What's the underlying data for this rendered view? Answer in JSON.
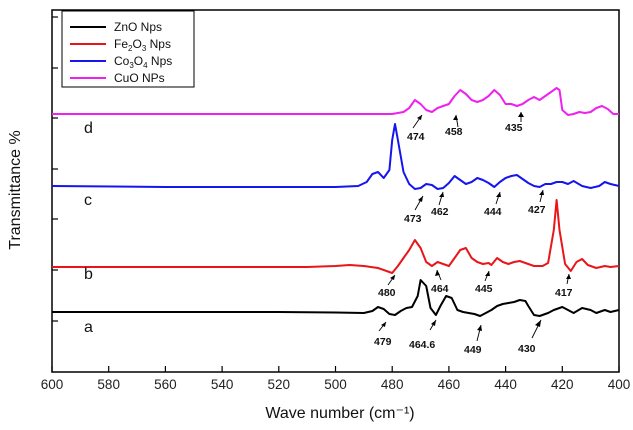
{
  "chart_data": {
    "type": "line",
    "title": "",
    "xlabel": "Wave number  (cm⁻¹)",
    "ylabel": "Transmittance %",
    "xlim": [
      600,
      400
    ],
    "x_reversed": true,
    "x_ticks": [
      600,
      580,
      560,
      540,
      520,
      500,
      480,
      460,
      440,
      420,
      400
    ],
    "y_ticks_labeled": false,
    "grid": false,
    "legend_position": "top-left",
    "y_units": "arbitrary (stacked offsets)",
    "series": [
      {
        "name": "ZnO   Nps",
        "legend_name": "ZnO   Nps",
        "curve_label": "a",
        "color": "#000000",
        "points": [
          [
            600,
            312
          ],
          [
            580,
            312
          ],
          [
            560,
            312
          ],
          [
            540,
            312
          ],
          [
            520,
            312
          ],
          [
            500,
            312.5
          ],
          [
            490,
            313
          ],
          [
            487,
            311
          ],
          [
            485,
            307
          ],
          [
            483,
            309
          ],
          [
            481,
            314
          ],
          [
            479,
            315
          ],
          [
            477,
            311
          ],
          [
            475,
            308
          ],
          [
            473,
            307
          ],
          [
            471,
            296
          ],
          [
            470,
            280
          ],
          [
            468,
            286
          ],
          [
            466.5,
            308
          ],
          [
            464.6,
            315
          ],
          [
            463,
            306
          ],
          [
            461,
            296
          ],
          [
            459,
            298
          ],
          [
            457,
            310
          ],
          [
            455,
            312
          ],
          [
            453,
            313
          ],
          [
            451,
            314
          ],
          [
            449,
            316
          ],
          [
            447,
            313
          ],
          [
            445,
            310
          ],
          [
            443,
            306
          ],
          [
            441,
            304
          ],
          [
            439,
            303
          ],
          [
            437,
            302
          ],
          [
            435,
            300
          ],
          [
            433,
            301
          ],
          [
            432,
            306
          ],
          [
            430,
            315
          ],
          [
            428,
            316
          ],
          [
            425,
            313
          ],
          [
            423,
            310
          ],
          [
            420,
            307
          ],
          [
            418,
            310
          ],
          [
            416,
            313
          ],
          [
            413,
            308
          ],
          [
            410,
            310
          ],
          [
            408,
            313
          ],
          [
            405,
            310
          ],
          [
            403,
            312
          ],
          [
            400,
            310
          ]
        ],
        "peak_labels": [
          "479",
          "464.6",
          "449",
          "430"
        ]
      },
      {
        "name": "Fe2O3 Nps",
        "legend_name": "Fe",
        "legend_sub1": "2",
        "legend_mid": "O",
        "legend_sub2": "3",
        "legend_tail": " Nps",
        "curve_label": "b",
        "color": "#e8161b",
        "points": [
          [
            600,
            267
          ],
          [
            540,
            267
          ],
          [
            510,
            267
          ],
          [
            500,
            266
          ],
          [
            495,
            265
          ],
          [
            490,
            266
          ],
          [
            485,
            268
          ],
          [
            482,
            271
          ],
          [
            480,
            273
          ],
          [
            478,
            266
          ],
          [
            476,
            258
          ],
          [
            474,
            250
          ],
          [
            472,
            240
          ],
          [
            470,
            248
          ],
          [
            468,
            262
          ],
          [
            466,
            266
          ],
          [
            464,
            262
          ],
          [
            462,
            264
          ],
          [
            460,
            266
          ],
          [
            458,
            258
          ],
          [
            456,
            250
          ],
          [
            454,
            248
          ],
          [
            452,
            258
          ],
          [
            450,
            262
          ],
          [
            448,
            264
          ],
          [
            446,
            263
          ],
          [
            445,
            265
          ],
          [
            443,
            258
          ],
          [
            441,
            262
          ],
          [
            439,
            264
          ],
          [
            437,
            262
          ],
          [
            435,
            261
          ],
          [
            433,
            263
          ],
          [
            430,
            266
          ],
          [
            427,
            266
          ],
          [
            425,
            263
          ],
          [
            423,
            230
          ],
          [
            422,
            200
          ],
          [
            421,
            230
          ],
          [
            419,
            264
          ],
          [
            417,
            271
          ],
          [
            415,
            262
          ],
          [
            413,
            259
          ],
          [
            411,
            265
          ],
          [
            408,
            268
          ],
          [
            405,
            266
          ],
          [
            403,
            267
          ],
          [
            400,
            266
          ]
        ],
        "peak_labels": [
          "480",
          "464",
          "445",
          "417"
        ]
      },
      {
        "name": "Co3O4 Nps",
        "legend_name": "Co",
        "legend_sub1": "3",
        "legend_mid": "O",
        "legend_sub2": "4",
        "legend_tail": " Nps",
        "curve_label": "c",
        "color": "#1515ee",
        "points": [
          [
            600,
            186
          ],
          [
            560,
            187
          ],
          [
            530,
            187
          ],
          [
            500,
            187
          ],
          [
            492,
            186
          ],
          [
            489,
            182
          ],
          [
            487,
            174
          ],
          [
            485,
            172
          ],
          [
            483,
            178
          ],
          [
            481,
            170
          ],
          [
            480,
            140
          ],
          [
            479,
            124
          ],
          [
            478,
            140
          ],
          [
            476,
            172
          ],
          [
            474,
            184
          ],
          [
            472,
            189
          ],
          [
            470,
            188
          ],
          [
            468,
            184
          ],
          [
            466,
            185
          ],
          [
            464,
            189
          ],
          [
            462,
            188
          ],
          [
            460,
            183
          ],
          [
            458,
            176
          ],
          [
            456,
            180
          ],
          [
            454,
            184
          ],
          [
            452,
            182
          ],
          [
            450,
            178
          ],
          [
            448,
            180
          ],
          [
            446,
            183
          ],
          [
            444,
            187
          ],
          [
            442,
            182
          ],
          [
            440,
            178
          ],
          [
            438,
            176
          ],
          [
            436,
            175
          ],
          [
            434,
            179
          ],
          [
            432,
            183
          ],
          [
            430,
            186
          ],
          [
            428,
            187
          ],
          [
            426,
            184
          ],
          [
            424,
            184
          ],
          [
            422,
            182
          ],
          [
            420,
            182
          ],
          [
            418,
            184
          ],
          [
            416,
            181
          ],
          [
            413,
            186
          ],
          [
            410,
            188
          ],
          [
            407,
            186
          ],
          [
            405,
            182
          ],
          [
            403,
            184
          ],
          [
            400,
            186
          ]
        ],
        "peak_labels": [
          "473",
          "462",
          "444",
          "427"
        ]
      },
      {
        "name": "CuO   NPs",
        "legend_name": "CuO   NPs",
        "curve_label": "d",
        "color": "#ee22ee",
        "points": [
          [
            600,
            114
          ],
          [
            560,
            114
          ],
          [
            530,
            114
          ],
          [
            500,
            114
          ],
          [
            490,
            114
          ],
          [
            480,
            114
          ],
          [
            476,
            112
          ],
          [
            474,
            108
          ],
          [
            472,
            100
          ],
          [
            470,
            104
          ],
          [
            468,
            110
          ],
          [
            466,
            112
          ],
          [
            464,
            108
          ],
          [
            462,
            106
          ],
          [
            460,
            104
          ],
          [
            458,
            96
          ],
          [
            456,
            90
          ],
          [
            454,
            94
          ],
          [
            452,
            100
          ],
          [
            450,
            102
          ],
          [
            448,
            100
          ],
          [
            446,
            96
          ],
          [
            444,
            90
          ],
          [
            442,
            95
          ],
          [
            440,
            104
          ],
          [
            438,
            104
          ],
          [
            436,
            106
          ],
          [
            434,
            104
          ],
          [
            432,
            100
          ],
          [
            430,
            97
          ],
          [
            428,
            100
          ],
          [
            426,
            96
          ],
          [
            424,
            92
          ],
          [
            422,
            88
          ],
          [
            421,
            90
          ],
          [
            420,
            110
          ],
          [
            418,
            115
          ],
          [
            416,
            114
          ],
          [
            414,
            112
          ],
          [
            412,
            113
          ],
          [
            410,
            112
          ],
          [
            408,
            108
          ],
          [
            406,
            106
          ],
          [
            404,
            109
          ],
          [
            402,
            114
          ],
          [
            400,
            114
          ]
        ],
        "peak_labels": [
          "474",
          "458",
          "435"
        ]
      }
    ]
  }
}
